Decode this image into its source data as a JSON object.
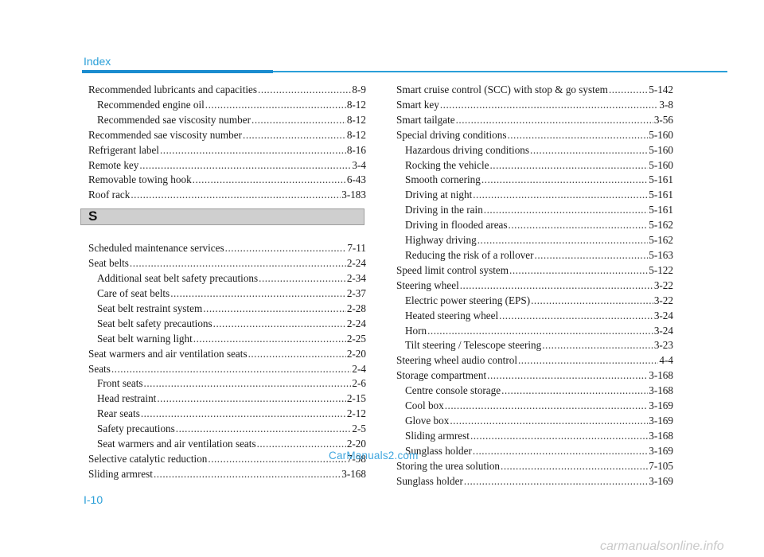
{
  "header": {
    "title": "Index"
  },
  "colors": {
    "accent": "#2a9fd8",
    "section_bar": "#cfcfcf",
    "watermark": "#3fa6df"
  },
  "left_before": [
    {
      "text": "Recommended lubricants and capacities",
      "page": "8-9",
      "sub": false
    },
    {
      "text": "Recommended engine oil",
      "page": "8-12",
      "sub": true
    },
    {
      "text": "Recommended sae viscosity number",
      "page": "8-12",
      "sub": true
    },
    {
      "text": "Recommended sae viscosity number",
      "page": "8-12",
      "sub": false
    },
    {
      "text": "Refrigerant label",
      "page": "8-16",
      "sub": false
    },
    {
      "text": "Remote key",
      "page": "3-4",
      "sub": false
    },
    {
      "text": "Removable towing hook",
      "page": "6-43",
      "sub": false
    },
    {
      "text": "Roof rack",
      "page": "3-183",
      "sub": false
    }
  ],
  "section_letter": "S",
  "left_after": [
    {
      "text": "Scheduled maintenance services",
      "page": "7-11",
      "sub": false
    },
    {
      "text": "Seat belts",
      "page": "2-24",
      "sub": false
    },
    {
      "text": "Additional seat belt safety precautions",
      "page": "2-34",
      "sub": true
    },
    {
      "text": "Care of seat belts",
      "page": "2-37",
      "sub": true
    },
    {
      "text": "Seat belt restraint system",
      "page": "2-28",
      "sub": true
    },
    {
      "text": "Seat belt safety precautions",
      "page": "2-24",
      "sub": true
    },
    {
      "text": "Seat belt warning light",
      "page": "2-25",
      "sub": true
    },
    {
      "text": "Seat warmers and air ventilation seats",
      "page": "2-20",
      "sub": false
    },
    {
      "text": "Seats",
      "page": "2-4",
      "sub": false
    },
    {
      "text": "Front seats",
      "page": "2-6",
      "sub": true
    },
    {
      "text": "Head restraint",
      "page": "2-15",
      "sub": true
    },
    {
      "text": "Rear seats",
      "page": "2-12",
      "sub": true
    },
    {
      "text": "Safety precautions",
      "page": "2-5",
      "sub": true
    },
    {
      "text": "Seat warmers and air ventilation seats",
      "page": "2-20",
      "sub": true
    },
    {
      "text": "Selective catalytic reduction",
      "page": "7-98",
      "sub": false
    },
    {
      "text": "Sliding armrest",
      "page": "3-168",
      "sub": false
    }
  ],
  "right": [
    {
      "text": "Smart cruise control (SCC) with stop & go system",
      "page": "5-142",
      "sub": false
    },
    {
      "text": "Smart key",
      "page": "3-8",
      "sub": false
    },
    {
      "text": "Smart tailgate",
      "page": "3-56",
      "sub": false
    },
    {
      "text": "Special driving conditions",
      "page": "5-160",
      "sub": false
    },
    {
      "text": "Hazardous driving conditions",
      "page": "5-160",
      "sub": true
    },
    {
      "text": "Rocking the vehicle",
      "page": "5-160",
      "sub": true
    },
    {
      "text": "Smooth cornering",
      "page": "5-161",
      "sub": true
    },
    {
      "text": "Driving at night",
      "page": "5-161",
      "sub": true
    },
    {
      "text": "Driving in the rain",
      "page": "5-161",
      "sub": true
    },
    {
      "text": "Driving in flooded areas",
      "page": "5-162",
      "sub": true
    },
    {
      "text": "Highway driving",
      "page": "5-162",
      "sub": true
    },
    {
      "text": "Reducing the risk of a rollover",
      "page": "5-163",
      "sub": true
    },
    {
      "text": "Speed limit control system",
      "page": "5-122",
      "sub": false
    },
    {
      "text": "Steering wheel",
      "page": "3-22",
      "sub": false
    },
    {
      "text": "Electric power steering (EPS)",
      "page": "3-22",
      "sub": true
    },
    {
      "text": "Heated steering wheel",
      "page": "3-24",
      "sub": true
    },
    {
      "text": "Horn",
      "page": "3-24",
      "sub": true
    },
    {
      "text": "Tilt steering / Telescope steering",
      "page": "3-23",
      "sub": true
    },
    {
      "text": "Steering wheel audio control",
      "page": "4-4",
      "sub": false
    },
    {
      "text": "Storage compartment",
      "page": "3-168",
      "sub": false
    },
    {
      "text": "Centre console storage",
      "page": "3-168",
      "sub": true
    },
    {
      "text": "Cool box",
      "page": "3-169",
      "sub": true
    },
    {
      "text": "Glove box",
      "page": "3-169",
      "sub": true
    },
    {
      "text": "Sliding armrest",
      "page": "3-168",
      "sub": true
    },
    {
      "text": "Sunglass holder",
      "page": "3-169",
      "sub": true
    },
    {
      "text": "Storing the urea solution",
      "page": "7-105",
      "sub": false
    },
    {
      "text": "Sunglass holder",
      "page": "3-169",
      "sub": false
    }
  ],
  "watermark": "CarManuals2.com",
  "page_number": "I-10",
  "footer_mark": "carmanualsonline.info"
}
